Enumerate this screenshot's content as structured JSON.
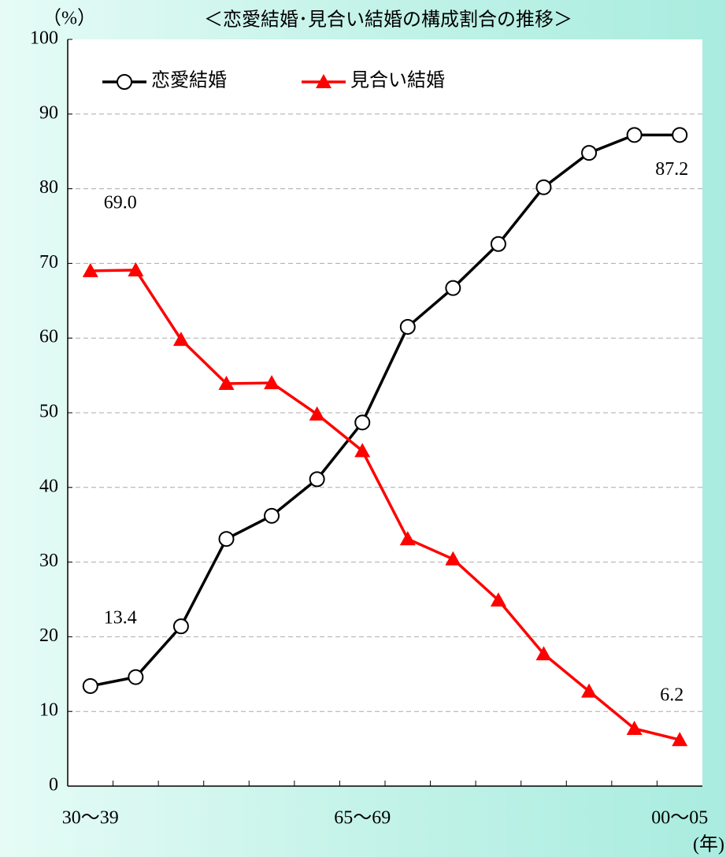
{
  "chart_data": {
    "type": "line",
    "title": "＜恋愛結婚･見合い結婚の構成割合の推移＞",
    "y_label": "（%）",
    "x_label": "(年)",
    "categories": [
      "30～39",
      null,
      null,
      null,
      null,
      null,
      "65～69",
      null,
      null,
      null,
      null,
      null,
      null,
      "00～05"
    ],
    "series": [
      {
        "name": "恋愛結婚",
        "color": "#000000",
        "marker": "circle",
        "values": [
          13.4,
          14.6,
          21.4,
          33.1,
          36.2,
          41.1,
          48.7,
          61.5,
          66.7,
          72.6,
          80.2,
          84.8,
          87.2,
          87.2
        ],
        "value_labels": [
          "13.4",
          null,
          null,
          null,
          null,
          null,
          null,
          null,
          null,
          null,
          null,
          null,
          null,
          "87.2"
        ]
      },
      {
        "name": "見合い結婚",
        "color": "#ff0000",
        "marker": "triangle",
        "values": [
          69.0,
          69.1,
          59.8,
          53.9,
          54.0,
          49.8,
          44.9,
          33.1,
          30.4,
          24.9,
          17.7,
          12.7,
          7.7,
          6.2
        ],
        "value_labels": [
          "69.0",
          null,
          null,
          null,
          null,
          null,
          null,
          null,
          null,
          null,
          null,
          null,
          null,
          "6.2"
        ]
      }
    ],
    "ylim": [
      0,
      100
    ],
    "yticks": [
      0,
      10,
      20,
      30,
      40,
      50,
      60,
      70,
      80,
      90,
      100
    ],
    "grid": true,
    "legend": "top-left"
  }
}
